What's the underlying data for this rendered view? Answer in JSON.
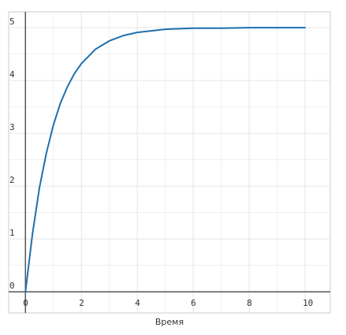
{
  "chart_data": {
    "type": "line",
    "title": "",
    "xlabel": "Время",
    "ylabel": "",
    "xlim": [
      -0.6,
      10.9
    ],
    "ylim": [
      -0.4,
      5.3
    ],
    "x_ticks": [
      "0",
      "2",
      "4",
      "6",
      "8",
      "10"
    ],
    "y_ticks": [
      "0",
      "1",
      "2",
      "3",
      "4",
      "5"
    ],
    "grid": true,
    "legend": "none",
    "series": [
      {
        "color": "#1f6fad",
        "x": [
          0,
          0.25,
          0.5,
          0.75,
          1,
          1.25,
          1.5,
          1.75,
          2,
          2.5,
          3,
          3.5,
          4,
          4.5,
          5,
          6,
          7,
          8,
          9,
          10
        ],
        "y": [
          0,
          1.09,
          1.97,
          2.63,
          3.16,
          3.57,
          3.88,
          4.13,
          4.32,
          4.59,
          4.75,
          4.85,
          4.91,
          4.94,
          4.97,
          4.99,
          4.99,
          5.0,
          5.0,
          5.0
        ]
      }
    ]
  },
  "colors": {
    "grid": "#e6e6e6",
    "axis": "#555555",
    "frame": "#cccccc"
  }
}
